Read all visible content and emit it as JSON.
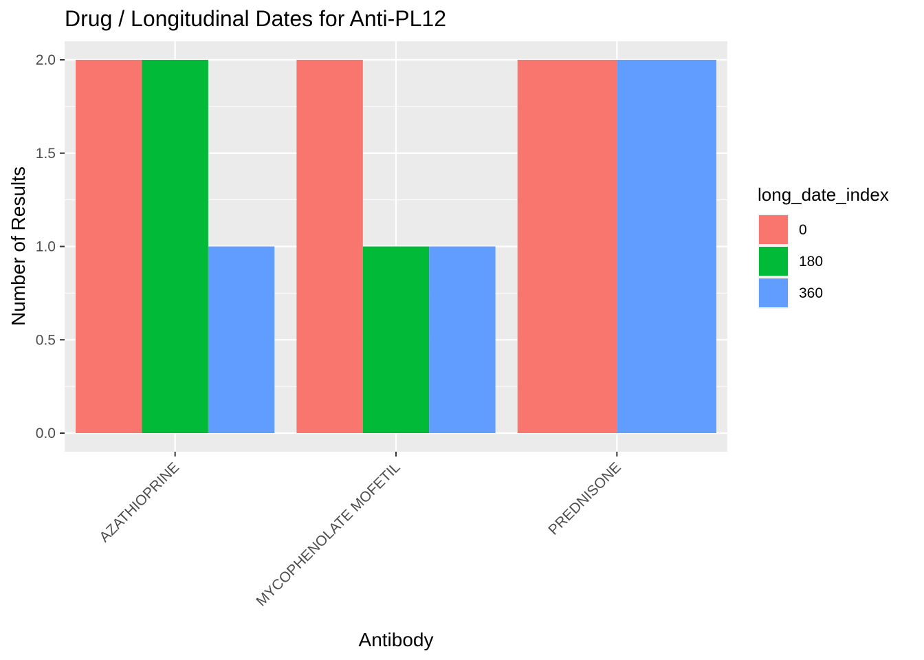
{
  "chart_data": {
    "type": "bar",
    "title": "Drug / Longitudinal Dates for Anti-PL12",
    "xlabel": "Antibody",
    "ylabel": "Number of Results",
    "categories": [
      "AZATHIOPRINE",
      "MYCOPHENOLATE MOFETIL",
      "PREDNISONE"
    ],
    "series": [
      {
        "name": "0",
        "color": "#F8766D",
        "values": [
          2,
          2,
          2
        ]
      },
      {
        "name": "180",
        "color": "#00BA38",
        "values": [
          2,
          1,
          null
        ]
      },
      {
        "name": "360",
        "color": "#619CFF",
        "values": [
          1,
          1,
          2
        ]
      }
    ],
    "ylim": [
      0,
      2
    ],
    "yticks": [
      "0.0",
      "0.5",
      "1.0",
      "1.5",
      "2.0"
    ],
    "grid": true,
    "legend": {
      "title": "long_date_index",
      "position": "right"
    },
    "panel_color": "#EBEBEB"
  }
}
